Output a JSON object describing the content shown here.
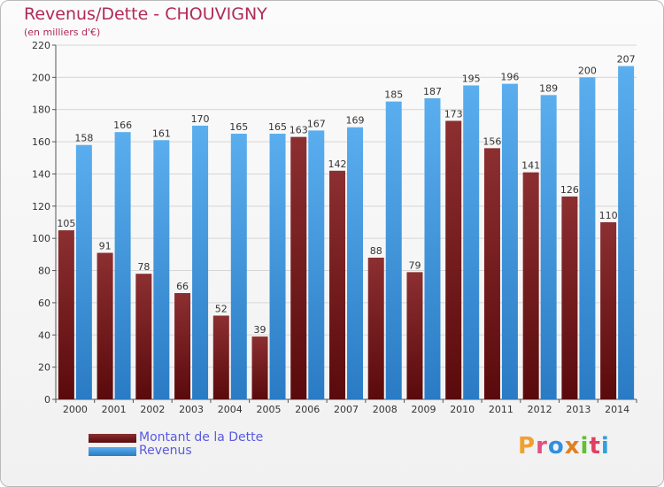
{
  "title": "Revenus/Dette - CHOUVIGNY",
  "subtitle": "(en milliers d'€)",
  "logo": [
    "P",
    "r",
    "o",
    "x",
    "i",
    "t",
    "i"
  ],
  "colors": {
    "title": "#b02a5a",
    "dette_top": "#8c2f31",
    "dette_bottom": "#5a0a0c",
    "revenus_top": "#5aaeee",
    "revenus_bottom": "#2a7bc4",
    "legend_text": "#5a5ae0",
    "logo": [
      "#f0a030",
      "#e05080",
      "#3090e0",
      "#e08020",
      "#60c030",
      "#e04060",
      "#30a0e0"
    ]
  },
  "chart_data": {
    "type": "bar",
    "categories": [
      "2000",
      "2001",
      "2002",
      "2003",
      "2004",
      "2005",
      "2006",
      "2007",
      "2008",
      "2009",
      "2010",
      "2011",
      "2012",
      "2013",
      "2014"
    ],
    "series": [
      {
        "name": "Montant de la Dette",
        "values": [
          105,
          91,
          78,
          66,
          52,
          39,
          163,
          142,
          88,
          79,
          173,
          156,
          141,
          126,
          110
        ]
      },
      {
        "name": "Revenus",
        "values": [
          158,
          166,
          161,
          170,
          165,
          165,
          167,
          169,
          185,
          187,
          195,
          196,
          189,
          200,
          207
        ]
      }
    ],
    "ylim": [
      0,
      220
    ],
    "yticks": [
      0,
      20,
      40,
      60,
      80,
      100,
      120,
      140,
      160,
      180,
      200,
      220
    ],
    "grid": true,
    "legend": "bottom-left"
  }
}
